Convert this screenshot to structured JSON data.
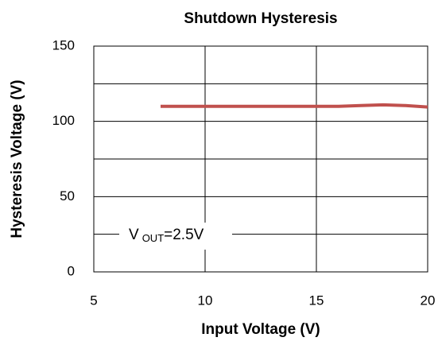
{
  "chart_data": {
    "type": "line",
    "title": "Shutdown Hysteresis",
    "xlabel": "Input Voltage (V)",
    "ylabel": "Hysteresis Voltage (V)",
    "x": [
      8,
      10,
      12,
      14,
      16,
      17,
      18,
      19,
      20
    ],
    "series": [
      {
        "name": "Hysteresis",
        "color": "#c0504d",
        "values": [
          110,
          110,
          110,
          110,
          110,
          110.5,
          111,
          110.5,
          109.5
        ]
      }
    ],
    "xlim": [
      5,
      20
    ],
    "xticks": [
      5,
      10,
      15,
      20
    ],
    "ylim": [
      0,
      150
    ],
    "yticks": [
      0,
      50,
      100,
      150
    ],
    "minor_yticks": [
      25,
      75,
      125
    ],
    "grid": true,
    "annotation": {
      "main": "V",
      "sub": "OUT",
      "rest": "=2.5V"
    }
  }
}
